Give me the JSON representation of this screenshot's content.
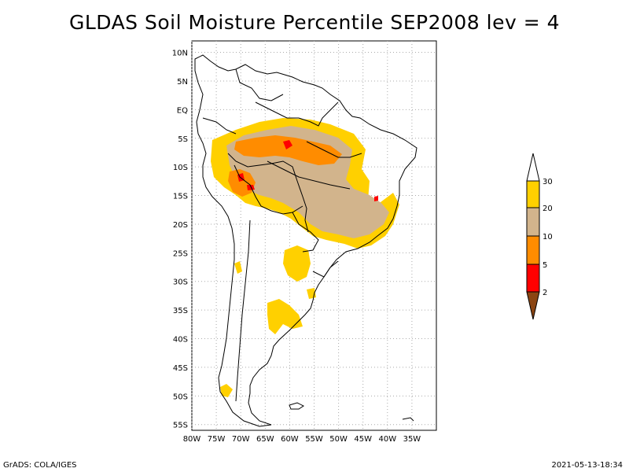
{
  "title": "GLDAS Soil Moisture Percentile SEP2008 lev = 4",
  "footer": {
    "left": "GrADS: COLA/IGES",
    "right": "2021-05-13-18:34"
  },
  "map": {
    "lon_range": [
      -80,
      -30
    ],
    "lat_range": [
      -56,
      12
    ],
    "lat_labels": [
      {
        "lat": 10,
        "text": "10N"
      },
      {
        "lat": 5,
        "text": "5N"
      },
      {
        "lat": 0,
        "text": "EQ"
      },
      {
        "lat": -5,
        "text": "5S"
      },
      {
        "lat": -10,
        "text": "10S"
      },
      {
        "lat": -15,
        "text": "15S"
      },
      {
        "lat": -20,
        "text": "20S"
      },
      {
        "lat": -25,
        "text": "25S"
      },
      {
        "lat": -30,
        "text": "30S"
      },
      {
        "lat": -35,
        "text": "35S"
      },
      {
        "lat": -40,
        "text": "40S"
      },
      {
        "lat": -45,
        "text": "45S"
      },
      {
        "lat": -50,
        "text": "50S"
      },
      {
        "lat": -55,
        "text": "55S"
      }
    ],
    "lon_labels": [
      {
        "lon": -80,
        "text": "80W"
      },
      {
        "lon": -75,
        "text": "75W"
      },
      {
        "lon": -70,
        "text": "70W"
      },
      {
        "lon": -65,
        "text": "65W"
      },
      {
        "lon": -60,
        "text": "60W"
      },
      {
        "lon": -55,
        "text": "55W"
      },
      {
        "lon": -50,
        "text": "50W"
      },
      {
        "lon": -45,
        "text": "45W"
      },
      {
        "lon": -40,
        "text": "40W"
      },
      {
        "lon": -35,
        "text": "35W"
      }
    ],
    "grid": true
  },
  "legend": {
    "colors": {
      "lt2": "#8B4513",
      "2to5": "#FF0000",
      "5to10": "#FF8C00",
      "10to20": "#D2B48C",
      "20to30": "#FFD000",
      "gt30": "#FFFFFF"
    },
    "labels": [
      "2",
      "5",
      "10",
      "20",
      "30"
    ]
  },
  "colors": {
    "outline": "#000000",
    "gridline": "#aaaaaa",
    "yellow": "#FFD000",
    "tan": "#D2B48C",
    "orange": "#FF8C00",
    "red": "#FF0000"
  }
}
